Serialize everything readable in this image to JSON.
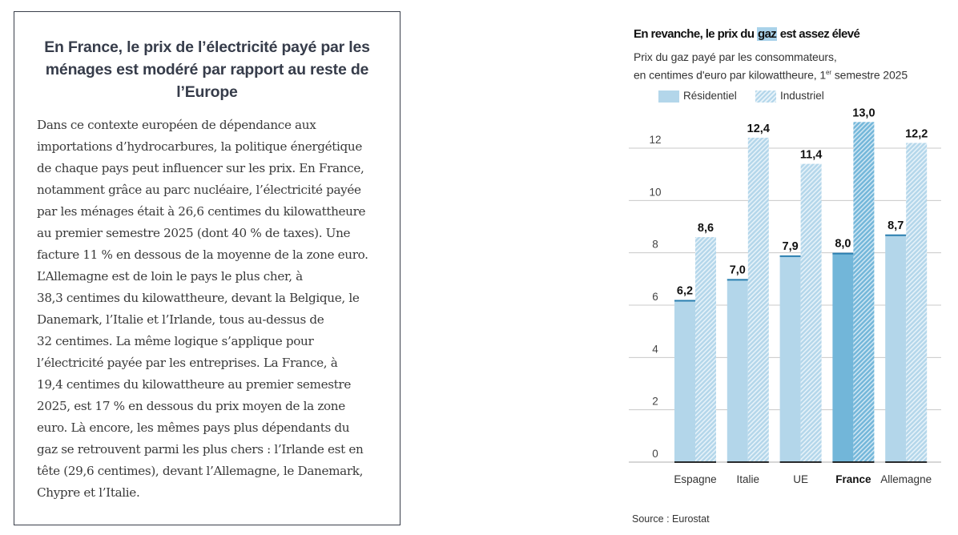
{
  "article": {
    "title": "En France, le prix de l’électricité payé par les ménages est modéré par rapport au reste de l’Europe",
    "title_lines": [
      "En France, le prix de l’électricité payé par les",
      "ménages est modéré par rapport au reste de",
      "l’Europe"
    ],
    "body_lines": [
      "Dans ce contexte européen de dépendance aux",
      "importations d’hydrocarbures, la politique énergétique",
      "de chaque pays peut influencer sur les prix. En France,",
      "notamment grâce au parc nucléaire, l’électricité payée",
      "par les ménages était à 26,6 centimes du kilowattheure",
      "au premier semestre 2025 (dont 40 % de taxes). Une",
      "facture 11 % en dessous de la moyenne de la zone euro.",
      "L’Allemagne est de loin le pays le plus cher, à",
      "38,3 centimes du kilowattheure, devant la Belgique, le",
      "Danemark, l’Italie et l’Irlande, tous au-dessus de",
      "32 centimes. La même logique s’applique pour",
      "l’électricité payée par les entreprises. La France, à",
      "19,4 centimes du kilowattheure au premier semestre",
      "2025, est 17 % en dessous du prix moyen de la zone",
      "euro. Là encore, les mêmes pays plus dépendants du",
      "gaz se retrouvent parmi les plus chers : l’Irlande est en",
      "tête (29,6 centimes), devant l’Allemagne, le Danemark,",
      "Chypre et l’Italie."
    ]
  },
  "chart_data": {
    "type": "bar",
    "title": "En revanche, le prix du gaz est assez élevé",
    "title_parts": {
      "before": "En revanche, le prix du ",
      "highlight": "gaz",
      "after": " est assez élevé"
    },
    "subtitle_line1": "Prix du gaz payé par les consommateurs,",
    "subtitle_line2_before": "en centimes d'euro par kilowattheure, 1",
    "subtitle_sup": "er",
    "subtitle_line2_after": " semestre 2025",
    "xlabel": "",
    "ylabel": "",
    "ylim": [
      0,
      13
    ],
    "yticks": [
      0,
      2,
      4,
      6,
      8,
      10,
      12
    ],
    "ytick_labels": [
      "0",
      "2",
      "4",
      "6",
      "8",
      "10",
      "12"
    ],
    "grid": true,
    "legend_position": "top-left",
    "categories": [
      "Espagne",
      "Italie",
      "UE",
      "France",
      "Allemagne"
    ],
    "highlight_category": "France",
    "series": [
      {
        "name": "Résidentiel",
        "values": [
          6.2,
          7.0,
          7.9,
          8.0,
          8.7
        ],
        "labels": [
          "6,2",
          "7,0",
          "7,9",
          "8,0",
          "8,7"
        ],
        "pattern": "solid"
      },
      {
        "name": "Industriel",
        "values": [
          8.6,
          12.4,
          11.4,
          13.0,
          12.2
        ],
        "labels": [
          "8,6",
          "12,4",
          "11,4",
          "13,0",
          "12,2"
        ],
        "pattern": "hatched"
      }
    ],
    "source": "Source : Eurostat"
  },
  "colors": {
    "bar": "#b3d6ea",
    "bar_highlight": "#72b6d9",
    "cap": "#2b7fb0",
    "hatch_light": "#e6f2f9",
    "grid": "#c8c8c8",
    "title_highlight": "#a9d2ea"
  }
}
